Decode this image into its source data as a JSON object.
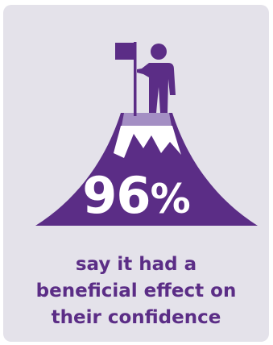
{
  "stat": {
    "number": "96",
    "unit": "%"
  },
  "caption": {
    "lines": [
      "say it had a",
      "beneficial effect on",
      "their confidence"
    ]
  },
  "colors": {
    "card_background": "#e4e2ea",
    "mountain": "#5b2d86",
    "peak_light": "#9b84bd",
    "text_accent": "#5b2d86",
    "stat_text": "#ffffff"
  },
  "icons": [
    "flag-icon",
    "person-icon",
    "mountain-icon"
  ]
}
